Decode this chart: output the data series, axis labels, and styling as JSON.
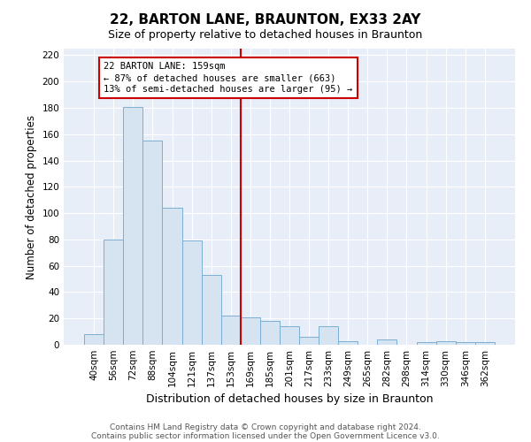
{
  "title": "22, BARTON LANE, BRAUNTON, EX33 2AY",
  "subtitle": "Size of property relative to detached houses in Braunton",
  "xlabel": "Distribution of detached houses by size in Braunton",
  "ylabel": "Number of detached properties",
  "bar_labels": [
    "40sqm",
    "56sqm",
    "72sqm",
    "88sqm",
    "104sqm",
    "121sqm",
    "137sqm",
    "153sqm",
    "169sqm",
    "185sqm",
    "201sqm",
    "217sqm",
    "233sqm",
    "249sqm",
    "265sqm",
    "282sqm",
    "298sqm",
    "314sqm",
    "330sqm",
    "346sqm",
    "362sqm"
  ],
  "bar_values": [
    8,
    80,
    181,
    155,
    104,
    79,
    53,
    22,
    21,
    18,
    14,
    6,
    14,
    3,
    0,
    4,
    0,
    2,
    3,
    2,
    2
  ],
  "bar_color": "#d6e4f2",
  "bar_edge_color": "#7bafd4",
  "vline_x": 7.5,
  "vline_color": "#cc0000",
  "annotation_line1": "22 BARTON LANE: 159sqm",
  "annotation_line2": "← 87% of detached houses are smaller (663)",
  "annotation_line3": "13% of semi-detached houses are larger (95) →",
  "annotation_box_color": "#ffffff",
  "annotation_box_edge": "#cc0000",
  "ylim": [
    0,
    225
  ],
  "yticks": [
    0,
    20,
    40,
    60,
    80,
    100,
    120,
    140,
    160,
    180,
    200,
    220
  ],
  "footer_line1": "Contains HM Land Registry data © Crown copyright and database right 2024.",
  "footer_line2": "Contains public sector information licensed under the Open Government Licence v3.0.",
  "bg_color": "#ffffff",
  "plot_bg_color": "#e8eef8",
  "grid_color": "#ffffff",
  "title_fontsize": 11,
  "subtitle_fontsize": 9
}
